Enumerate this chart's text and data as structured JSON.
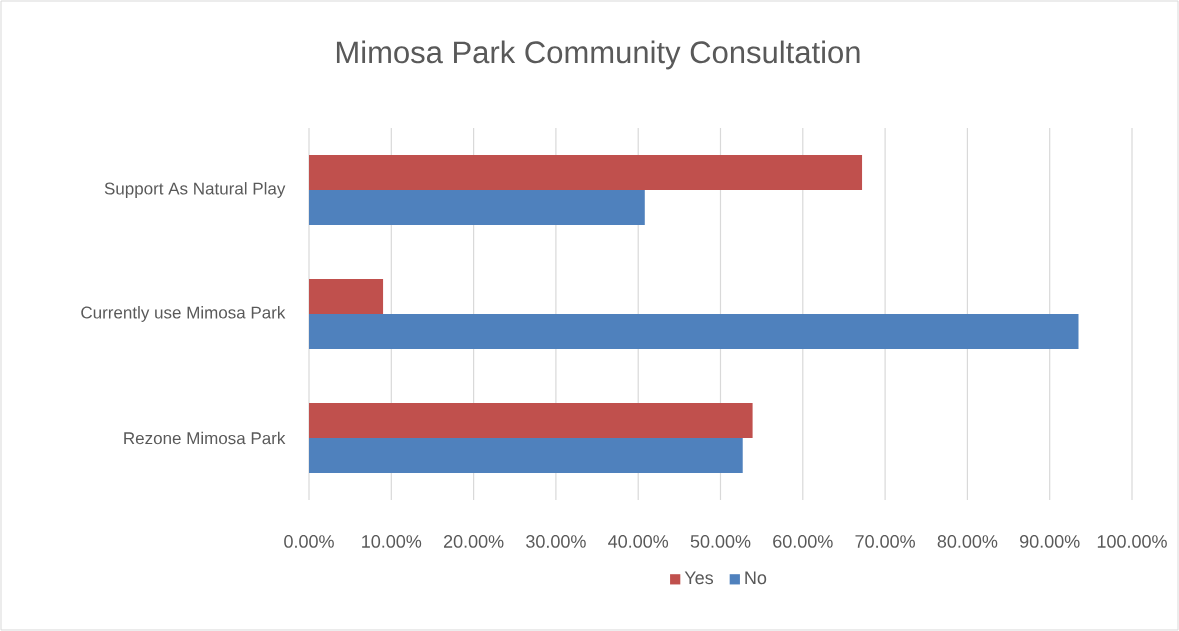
{
  "chart_data": {
    "type": "bar",
    "orientation": "horizontal",
    "title": "Mimosa Park Community Consultation",
    "categories": [
      "Support As Natural Play",
      "Currently use Mimosa Park",
      "Rezone Mimosa Park"
    ],
    "series": [
      {
        "name": "Yes",
        "color": "#c0504d",
        "values": [
          67.2,
          9.0,
          53.9
        ]
      },
      {
        "name": "No",
        "color": "#4f81bd",
        "values": [
          40.8,
          93.5,
          52.7
        ]
      }
    ],
    "xlim": [
      0,
      100
    ],
    "xticks": [
      {
        "value": 0,
        "label": "0.00%"
      },
      {
        "value": 10,
        "label": "10.00%"
      },
      {
        "value": 20,
        "label": "20.00%"
      },
      {
        "value": 30,
        "label": "30.00%"
      },
      {
        "value": 40,
        "label": "40.00%"
      },
      {
        "value": 50,
        "label": "50.00%"
      },
      {
        "value": 60,
        "label": "60.00%"
      },
      {
        "value": 70,
        "label": "70.00%"
      },
      {
        "value": 80,
        "label": "80.00%"
      },
      {
        "value": 90,
        "label": "90.00%"
      },
      {
        "value": 100,
        "label": "100.00%"
      }
    ],
    "grid": "x",
    "legend": "bottom"
  }
}
